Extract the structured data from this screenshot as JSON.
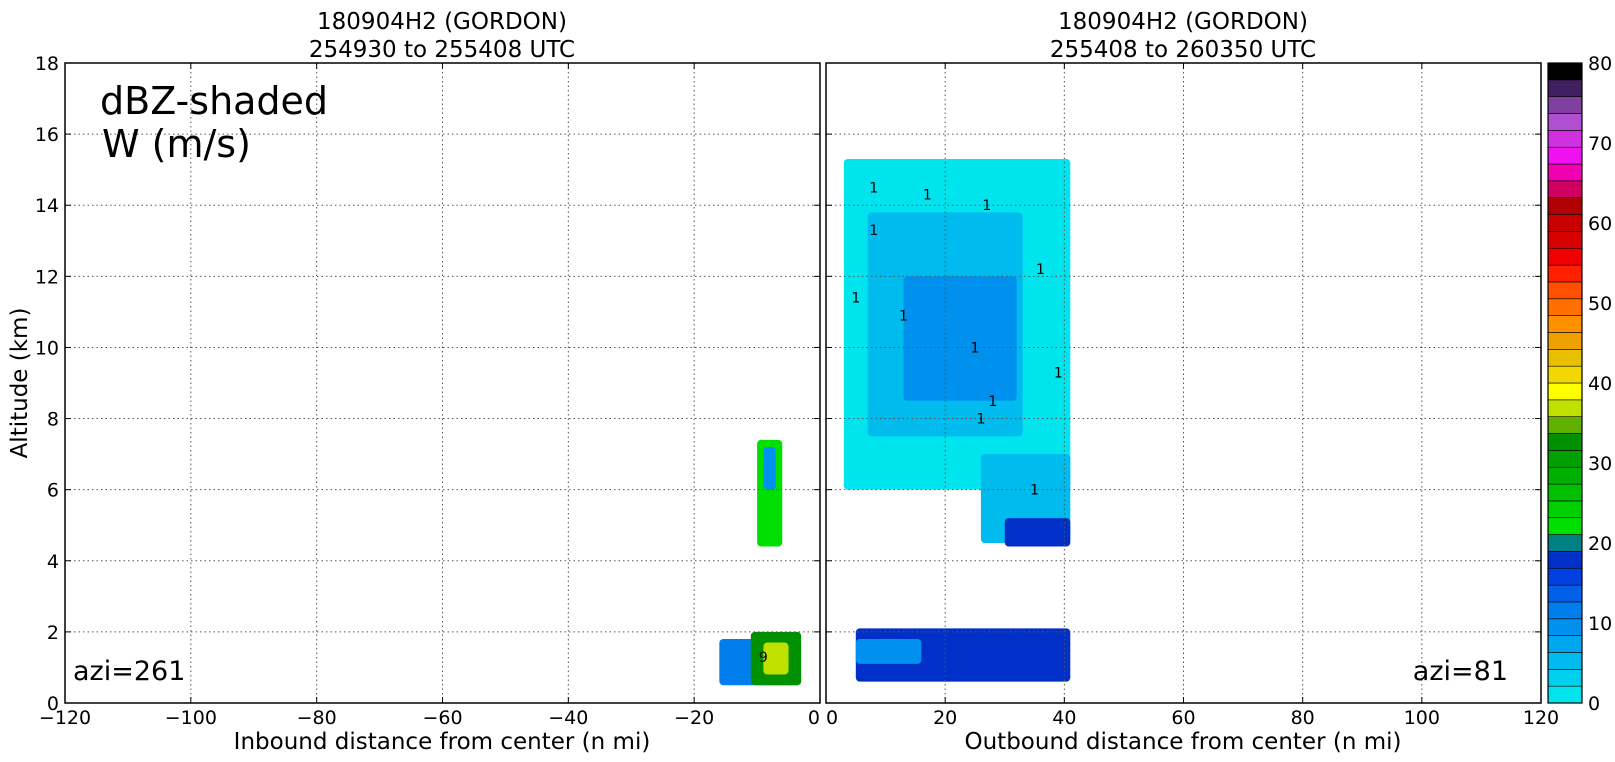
{
  "chart_data": [
    {
      "type": "heatmap",
      "title_line1": "180904H2 (GORDON)",
      "title_line2": "254930 to 255408 UTC",
      "xlabel": "Inbound distance from center (n mi)",
      "ylabel": "Altitude (km)",
      "xlim": [
        -120,
        0
      ],
      "ylim": [
        0,
        18
      ],
      "xticks": [
        "−120",
        "−100",
        "−80",
        "−60",
        "−40",
        "−20",
        "0"
      ],
      "yticks": [
        "0",
        "2",
        "4",
        "6",
        "8",
        "10",
        "12",
        "14",
        "16",
        "18"
      ],
      "grid": true,
      "annotation_line1": "dBZ-shaded",
      "annotation_line2": "W (m/s)",
      "azimuth_label": "azi=261",
      "echo_regions": [
        {
          "x": [
            -10,
            -6
          ],
          "y": [
            4.4,
            7.4
          ],
          "dbz": 25
        },
        {
          "x": [
            -9,
            -7
          ],
          "y": [
            6.0,
            7.2
          ],
          "dbz": 10
        },
        {
          "x": [
            -16,
            -3
          ],
          "y": [
            0.5,
            1.8
          ],
          "dbz": 14
        },
        {
          "x": [
            -11,
            -3
          ],
          "y": [
            0.5,
            2.0
          ],
          "dbz": 38
        },
        {
          "x": [
            -9,
            -5
          ],
          "y": [
            0.8,
            1.7
          ],
          "dbz": 44
        }
      ],
      "w_contours": [
        {
          "x": -9,
          "y": 1.3,
          "value": "9"
        }
      ]
    },
    {
      "type": "heatmap",
      "title_line1": "180904H2 (GORDON)",
      "title_line2": "255408 to 260350 UTC",
      "xlabel": "Outbound distance from center (n mi)",
      "xlim": [
        0,
        120
      ],
      "ylim": [
        0,
        18
      ],
      "xticks": [
        "0",
        "20",
        "40",
        "60",
        "80",
        "100",
        "120"
      ],
      "yticks": [
        "0",
        "2",
        "4",
        "6",
        "8",
        "10",
        "12",
        "14",
        "16",
        "18"
      ],
      "grid": true,
      "azimuth_label": "azi=81",
      "echo_regions": [
        {
          "x": [
            3,
            41
          ],
          "y": [
            6.0,
            15.3
          ],
          "dbz": 2
        },
        {
          "x": [
            7,
            33
          ],
          "y": [
            7.5,
            13.8
          ],
          "dbz": 6
        },
        {
          "x": [
            13,
            32
          ],
          "y": [
            8.5,
            12.0
          ],
          "dbz": 10
        },
        {
          "x": [
            26,
            41
          ],
          "y": [
            4.5,
            7.0
          ],
          "dbz": 6
        },
        {
          "x": [
            30,
            41
          ],
          "y": [
            4.4,
            5.2
          ],
          "dbz": 22
        },
        {
          "x": [
            5,
            41
          ],
          "y": [
            0.6,
            2.1
          ],
          "dbz": 22
        },
        {
          "x": [
            5,
            16
          ],
          "y": [
            1.1,
            1.8
          ],
          "dbz": 10
        }
      ],
      "w_contours": [
        {
          "x": 8,
          "y": 14.5,
          "value": "1"
        },
        {
          "x": 17,
          "y": 14.3,
          "value": "1"
        },
        {
          "x": 27,
          "y": 14.0,
          "value": "1"
        },
        {
          "x": 8,
          "y": 13.3,
          "value": "1"
        },
        {
          "x": 36,
          "y": 12.2,
          "value": "1"
        },
        {
          "x": 5,
          "y": 11.4,
          "value": "1"
        },
        {
          "x": 13,
          "y": 10.9,
          "value": "1"
        },
        {
          "x": 25,
          "y": 10.0,
          "value": "1"
        },
        {
          "x": 39,
          "y": 9.3,
          "value": "1"
        },
        {
          "x": 28,
          "y": 8.5,
          "value": "1"
        },
        {
          "x": 26,
          "y": 8.0,
          "value": "1"
        },
        {
          "x": 35,
          "y": 6.0,
          "value": "1"
        }
      ]
    }
  ],
  "colorbar": {
    "min": 0,
    "max": 80,
    "step": 2.5,
    "tick_labels": [
      "0",
      "10",
      "20",
      "30",
      "40",
      "50",
      "60",
      "70",
      "80"
    ],
    "colors": [
      "#00e4ee",
      "#00d0ee",
      "#00bbee",
      "#00a6ee",
      "#0091ee",
      "#007eee",
      "#0060e8",
      "#0040e0",
      "#0030c8",
      "#008080",
      "#00e000",
      "#00d000",
      "#00c000",
      "#00b000",
      "#00a000",
      "#009000",
      "#60b000",
      "#c0e000",
      "#ffff00",
      "#f0d800",
      "#e8c000",
      "#f0a000",
      "#ff9000",
      "#ff7000",
      "#ff5000",
      "#ff2000",
      "#f00000",
      "#d80000",
      "#c80000",
      "#b00000",
      "#d00060",
      "#f000b0",
      "#f010f0",
      "#d030e0",
      "#b050d0",
      "#8040a0",
      "#402060",
      "#000000"
    ]
  }
}
